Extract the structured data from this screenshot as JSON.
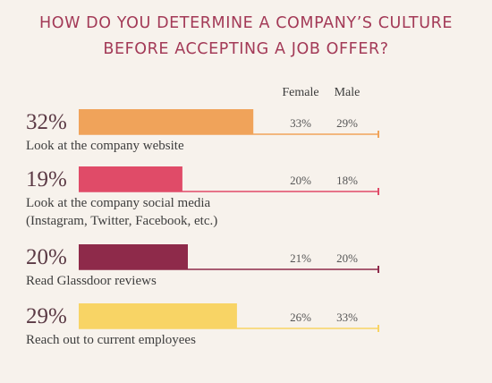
{
  "chart_data": {
    "type": "bar",
    "title": [
      "HOW DO YOU DETERMINE A COMPANY’S CULTURE",
      "BEFORE ACCEPTING A JOB OFFER?"
    ],
    "columns": [
      "Female",
      "Male"
    ],
    "xlim": [
      0,
      100
    ],
    "categories": [
      [
        "Look at the company website"
      ],
      [
        "Look at the company social media",
        "(Instagram, Twitter, Facebook, etc.)"
      ],
      [
        "Read Glassdoor reviews"
      ],
      [
        "Reach out to current employees"
      ]
    ],
    "values": [
      32,
      19,
      20,
      29
    ],
    "value_labels": [
      "32%",
      "19%",
      "20%",
      "29%"
    ],
    "female": [
      "33%",
      "20%",
      "21%",
      "26%"
    ],
    "male": [
      "29%",
      "18%",
      "20%",
      "33%"
    ],
    "colors": [
      "#f0a35a",
      "#e04b68",
      "#8e2a4a",
      "#f8d465"
    ]
  }
}
